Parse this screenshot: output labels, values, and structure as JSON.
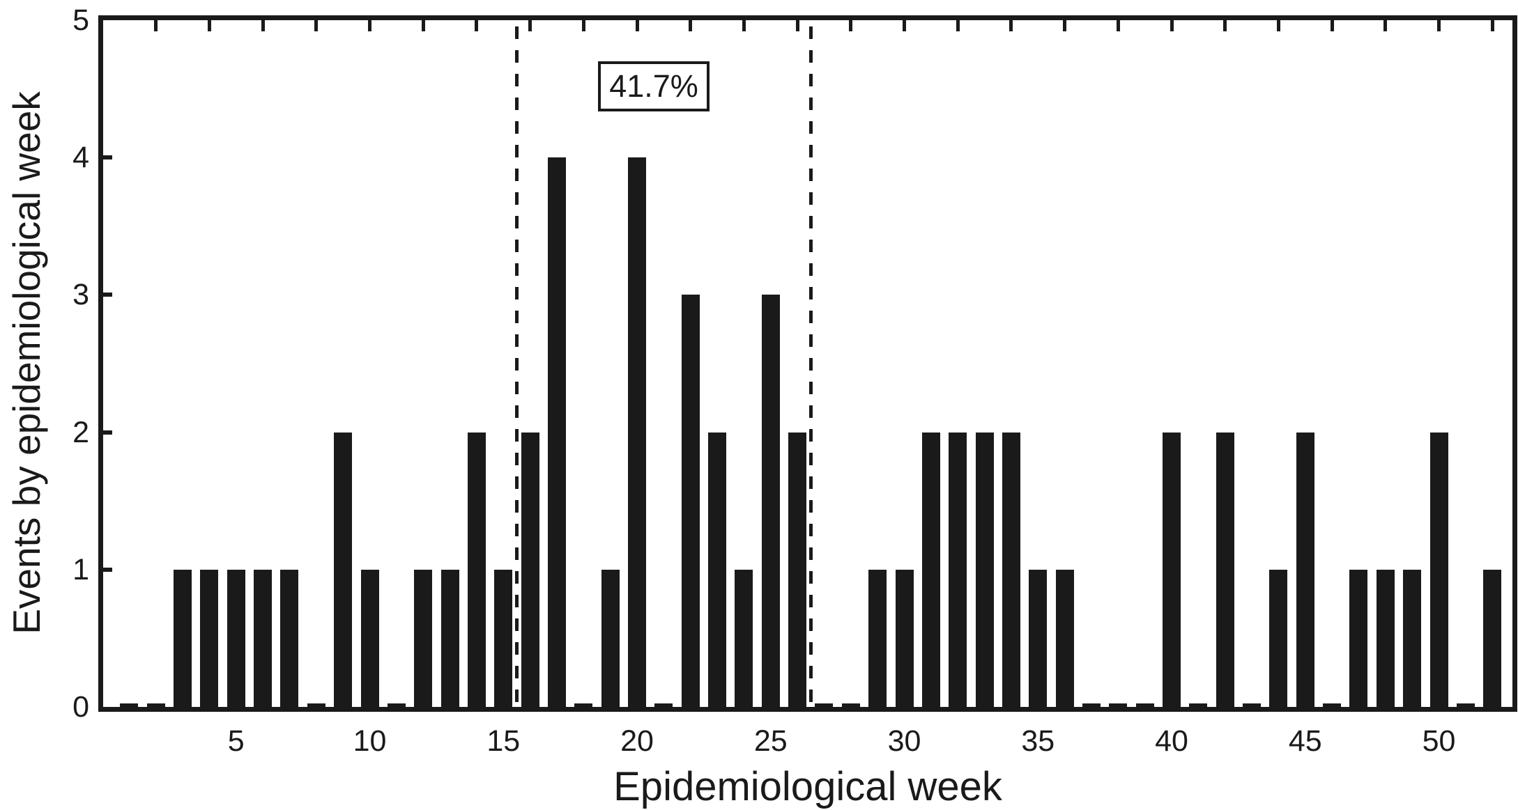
{
  "figure": {
    "ink_color": "#1a1a1a",
    "background_color": "#ffffff"
  },
  "annotation": {
    "label": "41.7%"
  },
  "chart_data": {
    "type": "bar",
    "title": "",
    "xlabel": "Epidemiological week",
    "ylabel": "Events by epidemiological week",
    "x": [
      1,
      2,
      3,
      4,
      5,
      6,
      7,
      8,
      9,
      10,
      11,
      12,
      13,
      14,
      15,
      16,
      17,
      18,
      19,
      20,
      21,
      22,
      23,
      24,
      25,
      26,
      27,
      28,
      29,
      30,
      31,
      32,
      33,
      34,
      35,
      36,
      37,
      38,
      39,
      40,
      41,
      42,
      43,
      44,
      45,
      46,
      47,
      48,
      49,
      50,
      51,
      52
    ],
    "values": [
      0,
      0,
      1,
      1,
      1,
      1,
      1,
      0,
      2,
      1,
      0,
      1,
      1,
      2,
      1,
      2,
      4,
      0,
      1,
      4,
      0,
      3,
      2,
      1,
      3,
      2,
      0,
      0,
      1,
      1,
      2,
      2,
      2,
      2,
      1,
      1,
      0,
      0,
      0,
      2,
      0,
      2,
      0,
      1,
      2,
      0,
      1,
      1,
      1,
      2,
      0,
      1
    ],
    "ylim": [
      0,
      5
    ],
    "xlim": [
      0,
      53
    ],
    "yticks": [
      0,
      1,
      2,
      3,
      4,
      5
    ],
    "xticks": [
      5,
      10,
      15,
      20,
      25,
      30,
      35,
      40,
      45,
      50
    ],
    "top_ticks_interval": 2,
    "grid": false,
    "legend": "none",
    "bar_color": "#1a1a1a",
    "dashed_lines_x": [
      15.5,
      26.5
    ],
    "annotation_label": "41.7%",
    "annotation_window_percent": "41.7%"
  }
}
